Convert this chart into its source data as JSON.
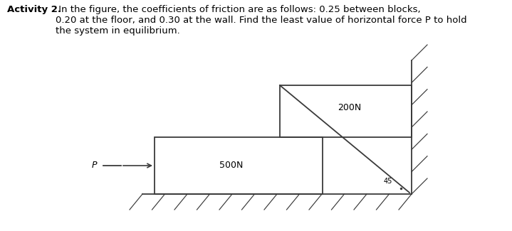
{
  "title_bold": "Activity 2.",
  "title_normal": " In the figure, the coefficients of friction are as follows: 0.25 between blocks,\n0.20 at the floor, and 0.30 at the wall. Find the least value of horizontal force P to hold\nthe system in equilibrium.",
  "label_200N": "200N",
  "label_500N": "500N",
  "label_P": "P",
  "label_45": "45",
  "bg_color": "#ffffff",
  "line_color": "#3a3a3a",
  "text_color": "#000000",
  "title_fontsize": 9.5,
  "diagram_fontsize": 9,
  "small_fontsize": 7
}
